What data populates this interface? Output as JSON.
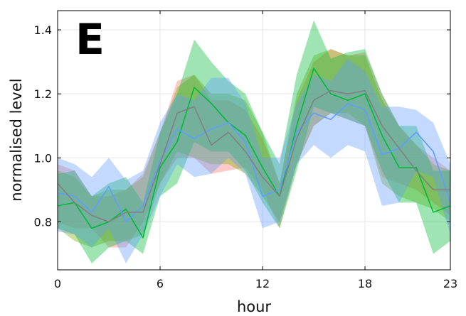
{
  "chart_data": {
    "type": "area",
    "panel_label": "E",
    "xlabel": "hour",
    "ylabel": "normalised level",
    "xlim": [
      0,
      23
    ],
    "ylim": [
      0.65,
      1.46
    ],
    "x_ticks": [
      0,
      6,
      12,
      18,
      23
    ],
    "y_ticks": [
      0.8,
      1.0,
      1.2,
      1.4
    ],
    "y_tick_labels": [
      "0.8",
      "1.0",
      "1.2",
      "1.4"
    ],
    "grid": true,
    "x": [
      0,
      1,
      2,
      3,
      4,
      5,
      6,
      7,
      8,
      9,
      10,
      11,
      12,
      13,
      14,
      15,
      16,
      17,
      18,
      19,
      20,
      21,
      22,
      23
    ],
    "series": [
      {
        "color": "#F8766D",
        "lower": [
          0.8,
          0.78,
          0.78,
          0.72,
          0.72,
          0.8,
          0.92,
          1.0,
          1.0,
          0.95,
          0.96,
          0.97,
          0.9,
          0.78,
          0.98,
          1.1,
          1.14,
          1.12,
          1.1,
          0.94,
          0.92,
          0.9,
          0.86,
          0.82
        ],
        "upper": [
          0.98,
          0.96,
          0.88,
          0.88,
          0.9,
          0.95,
          1.08,
          1.24,
          1.26,
          1.18,
          1.18,
          1.15,
          1.06,
          0.92,
          1.18,
          1.3,
          1.34,
          1.32,
          1.33,
          1.2,
          1.1,
          1.04,
          1.0,
          0.96
        ]
      },
      {
        "color": "#7CAE00",
        "lower": [
          0.78,
          0.74,
          0.72,
          0.74,
          0.74,
          0.76,
          0.92,
          1.02,
          1.0,
          0.98,
          0.98,
          0.95,
          0.88,
          0.8,
          0.98,
          1.1,
          1.14,
          1.14,
          1.1,
          0.92,
          0.88,
          0.86,
          0.84,
          0.8
        ],
        "upper": [
          0.96,
          0.94,
          0.88,
          0.9,
          0.9,
          0.94,
          1.08,
          1.22,
          1.26,
          1.2,
          1.2,
          1.18,
          1.08,
          0.92,
          1.2,
          1.32,
          1.34,
          1.32,
          1.32,
          1.18,
          1.1,
          1.04,
          0.98,
          0.96
        ]
      },
      {
        "color": "#00BA38",
        "line": [
          0.85,
          0.86,
          0.78,
          0.8,
          0.84,
          0.75,
          0.97,
          1.05,
          1.22,
          1.17,
          1.11,
          1.07,
          0.97,
          0.88,
          1.1,
          1.28,
          1.2,
          1.18,
          1.2,
          1.07,
          0.97,
          0.97,
          0.83,
          0.85
        ],
        "lower": [
          0.78,
          0.76,
          0.67,
          0.72,
          0.74,
          0.7,
          0.88,
          0.92,
          1.05,
          1.02,
          1.02,
          0.96,
          0.86,
          0.78,
          0.96,
          1.16,
          1.14,
          1.12,
          1.1,
          0.96,
          0.86,
          0.86,
          0.7,
          0.74
        ],
        "upper": [
          0.95,
          0.96,
          0.88,
          0.92,
          0.94,
          0.86,
          1.08,
          1.2,
          1.37,
          1.3,
          1.24,
          1.2,
          1.08,
          0.98,
          1.26,
          1.43,
          1.31,
          1.33,
          1.34,
          1.2,
          1.1,
          1.1,
          0.96,
          0.96
        ]
      },
      {
        "color": "#619CFF",
        "line": [
          0.89,
          0.88,
          0.83,
          0.91,
          0.8,
          0.85,
          0.99,
          1.09,
          1.06,
          1.09,
          1.11,
          1.05,
          0.88,
          0.9,
          1.08,
          1.14,
          1.12,
          1.17,
          1.15,
          1.01,
          1.03,
          1.08,
          1.02,
          0.86
        ],
        "lower": [
          0.77,
          0.76,
          0.72,
          0.78,
          0.67,
          0.76,
          0.88,
          0.98,
          0.94,
          0.95,
          1.0,
          0.95,
          0.78,
          0.8,
          0.98,
          1.04,
          1.0,
          1.04,
          1.02,
          0.85,
          0.86,
          0.96,
          0.94,
          0.76
        ],
        "upper": [
          1.0,
          0.98,
          0.94,
          1.0,
          0.93,
          0.96,
          1.11,
          1.2,
          1.18,
          1.25,
          1.25,
          1.17,
          1.0,
          1.0,
          1.17,
          1.26,
          1.24,
          1.31,
          1.27,
          1.16,
          1.16,
          1.15,
          1.11,
          0.98
        ]
      },
      {
        "color": "#808080",
        "line": [
          0.92,
          0.86,
          0.82,
          0.8,
          0.83,
          0.83,
          0.98,
          1.14,
          1.16,
          1.04,
          1.08,
          1.02,
          0.94,
          0.88,
          1.06,
          1.18,
          1.21,
          1.2,
          1.21,
          1.1,
          1.03,
          0.96,
          0.9,
          0.9
        ]
      }
    ]
  }
}
